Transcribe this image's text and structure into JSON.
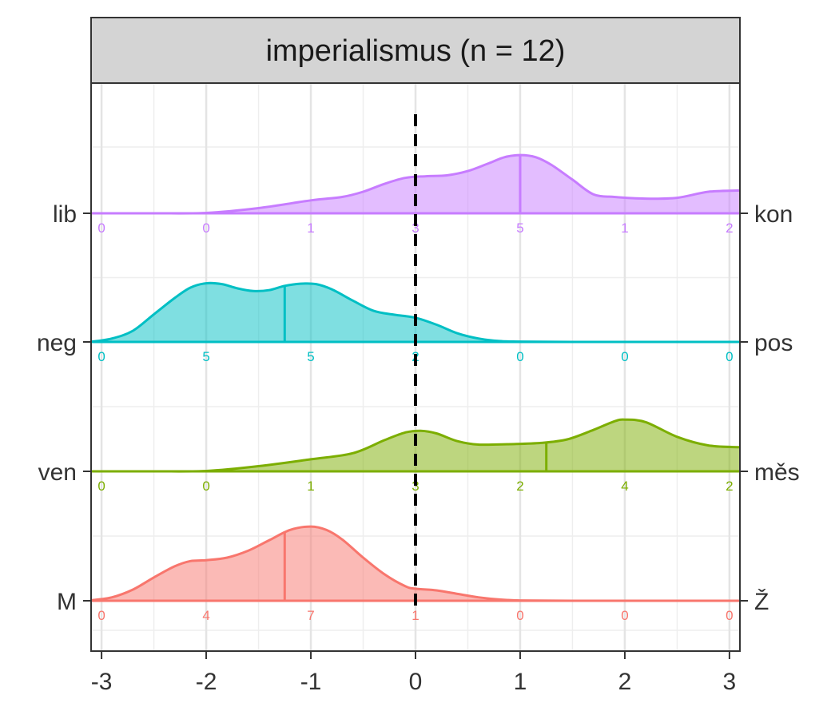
{
  "chart_data": {
    "type": "ridgeline",
    "title": "imperialismus (n = 12)",
    "xlabel": "",
    "ylabel": "",
    "xlim": [
      -3.1,
      3.1
    ],
    "x_ticks": [
      -3,
      -2,
      -1,
      0,
      1,
      2,
      3
    ],
    "x_tick_labels": [
      "-3",
      "-2",
      "-1",
      "0",
      "1",
      "2",
      "3"
    ],
    "reference_line_x": 0,
    "grid": true,
    "count_positions": [
      -3,
      -2,
      -1,
      0,
      1,
      2,
      3
    ],
    "rows": [
      {
        "left_label": "lib",
        "right_label": "kon",
        "color": "#C77CFF",
        "median": 1.0,
        "counts": [
          "0",
          "0",
          "1",
          "3",
          "5",
          "1",
          "2"
        ],
        "density": [
          [
            -3.1,
            0
          ],
          [
            -2.5,
            0
          ],
          [
            -2.0,
            0.005
          ],
          [
            -1.5,
            0.06
          ],
          [
            -1.0,
            0.15
          ],
          [
            -0.7,
            0.19
          ],
          [
            -0.5,
            0.25
          ],
          [
            -0.3,
            0.34
          ],
          [
            -0.1,
            0.41
          ],
          [
            0.1,
            0.43
          ],
          [
            0.3,
            0.44
          ],
          [
            0.5,
            0.49
          ],
          [
            0.7,
            0.58
          ],
          [
            0.85,
            0.65
          ],
          [
            1.0,
            0.675
          ],
          [
            1.15,
            0.65
          ],
          [
            1.3,
            0.56
          ],
          [
            1.5,
            0.39
          ],
          [
            1.7,
            0.22
          ],
          [
            1.9,
            0.19
          ],
          [
            2.2,
            0.17
          ],
          [
            2.5,
            0.18
          ],
          [
            2.8,
            0.25
          ],
          [
            3.1,
            0.265
          ]
        ]
      },
      {
        "left_label": "neg",
        "right_label": "pos",
        "color": "#00BFC4",
        "median": -1.25,
        "counts": [
          "0",
          "5",
          "5",
          "2",
          "0",
          "0",
          "0"
        ],
        "density": [
          [
            -3.1,
            0.002
          ],
          [
            -2.9,
            0.04
          ],
          [
            -2.7,
            0.13
          ],
          [
            -2.5,
            0.32
          ],
          [
            -2.3,
            0.51
          ],
          [
            -2.15,
            0.63
          ],
          [
            -2.0,
            0.68
          ],
          [
            -1.85,
            0.67
          ],
          [
            -1.7,
            0.62
          ],
          [
            -1.55,
            0.59
          ],
          [
            -1.4,
            0.6
          ],
          [
            -1.25,
            0.65
          ],
          [
            -1.1,
            0.675
          ],
          [
            -0.95,
            0.67
          ],
          [
            -0.8,
            0.61
          ],
          [
            -0.6,
            0.48
          ],
          [
            -0.4,
            0.36
          ],
          [
            -0.2,
            0.315
          ],
          [
            0.0,
            0.28
          ],
          [
            0.2,
            0.2
          ],
          [
            0.4,
            0.1
          ],
          [
            0.6,
            0.04
          ],
          [
            0.8,
            0.01
          ],
          [
            1.0,
            0.004
          ],
          [
            1.5,
            0
          ],
          [
            2.0,
            0
          ],
          [
            2.5,
            0
          ],
          [
            3.1,
            0
          ]
        ]
      },
      {
        "left_label": "ven",
        "right_label": "měs",
        "color": "#7CAE00",
        "median": 1.25,
        "counts": [
          "0",
          "0",
          "1",
          "3",
          "2",
          "4",
          "2"
        ],
        "density": [
          [
            -3.1,
            0
          ],
          [
            -2.5,
            0
          ],
          [
            -2.0,
            0.005
          ],
          [
            -1.5,
            0.06
          ],
          [
            -1.0,
            0.14
          ],
          [
            -0.6,
            0.21
          ],
          [
            -0.3,
            0.36
          ],
          [
            -0.1,
            0.45
          ],
          [
            0.05,
            0.47
          ],
          [
            0.2,
            0.44
          ],
          [
            0.4,
            0.35
          ],
          [
            0.6,
            0.31
          ],
          [
            0.9,
            0.315
          ],
          [
            1.2,
            0.33
          ],
          [
            1.45,
            0.37
          ],
          [
            1.7,
            0.48
          ],
          [
            1.9,
            0.58
          ],
          [
            2.0,
            0.6
          ],
          [
            2.2,
            0.57
          ],
          [
            2.5,
            0.4
          ],
          [
            2.8,
            0.3
          ],
          [
            3.1,
            0.28
          ]
        ]
      },
      {
        "left_label": "M",
        "right_label": "Ž",
        "color": "#F8766D",
        "median": -1.25,
        "counts": [
          "0",
          "4",
          "7",
          "1",
          "0",
          "0",
          "0"
        ],
        "density": [
          [
            -3.1,
            0.005
          ],
          [
            -2.9,
            0.04
          ],
          [
            -2.7,
            0.13
          ],
          [
            -2.5,
            0.27
          ],
          [
            -2.3,
            0.4
          ],
          [
            -2.15,
            0.46
          ],
          [
            -2.0,
            0.47
          ],
          [
            -1.8,
            0.5
          ],
          [
            -1.6,
            0.58
          ],
          [
            -1.4,
            0.7
          ],
          [
            -1.2,
            0.82
          ],
          [
            -1.0,
            0.86
          ],
          [
            -0.85,
            0.82
          ],
          [
            -0.7,
            0.71
          ],
          [
            -0.5,
            0.5
          ],
          [
            -0.3,
            0.31
          ],
          [
            -0.1,
            0.17
          ],
          [
            0.0,
            0.14
          ],
          [
            0.2,
            0.12
          ],
          [
            0.4,
            0.08
          ],
          [
            0.6,
            0.04
          ],
          [
            0.8,
            0.015
          ],
          [
            1.0,
            0.004
          ],
          [
            1.5,
            0
          ],
          [
            2.0,
            0
          ],
          [
            2.5,
            0
          ],
          [
            3.1,
            0
          ]
        ]
      }
    ]
  }
}
